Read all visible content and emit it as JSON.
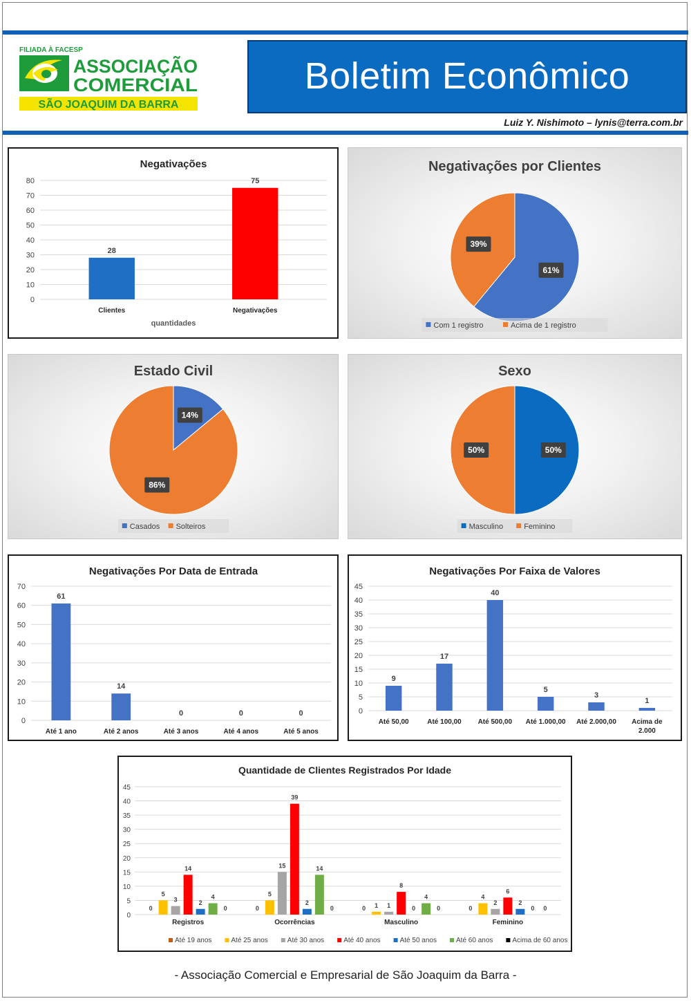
{
  "header": {
    "logo": {
      "tagline": "FILIADA À FACESP",
      "line1": "ASSOCIAÇÃO",
      "line2": "COMERCIAL",
      "city": "SÃO JOAQUIM DA BARRA"
    },
    "title": "Boletim Econômico",
    "author": "Luiz Y. Nishimoto – lynis@terra.com.br"
  },
  "footer": "- Associação Comercial e Empresarial de São Joaquim da Barra -",
  "colors": {
    "brand_blue": "#0b6bc1",
    "logo_green": "#1e9b3a",
    "logo_yellow": "#f5e400",
    "pie_blue": "#4472c4",
    "pie_orange": "#ed7d31",
    "bar_blue": "#4472c4",
    "bar_red": "#ff0000"
  },
  "chart_data": [
    {
      "id": "negativacoes",
      "type": "bar",
      "title": "Negativações",
      "categories": [
        "Clientes",
        "Negativações"
      ],
      "values": [
        28,
        75
      ],
      "bar_colors": [
        "#1f6fc5",
        "#ff0000"
      ],
      "xlabel": "quantidades",
      "ylabel": "",
      "ylim": [
        0,
        80
      ],
      "yticks": [
        0,
        10,
        20,
        30,
        40,
        50,
        60,
        70,
        80
      ],
      "grid": true
    },
    {
      "id": "negativacoes-por-clientes",
      "type": "pie",
      "title": "Negativações por Clientes",
      "labels": [
        "Com 1 registro",
        "Acima de 1 registro"
      ],
      "values": [
        61,
        39
      ],
      "value_labels": [
        "61%",
        "39%"
      ],
      "colors": [
        "#4472c4",
        "#ed7d31"
      ],
      "legend": "bottom"
    },
    {
      "id": "estado-civil",
      "type": "pie",
      "title": "Estado Civil",
      "labels": [
        "Casados",
        "Solteiros"
      ],
      "values": [
        14,
        86
      ],
      "value_labels": [
        "14%",
        "86%"
      ],
      "colors": [
        "#4472c4",
        "#ed7d31"
      ],
      "legend": "bottom"
    },
    {
      "id": "sexo",
      "type": "pie",
      "title": "Sexo",
      "labels": [
        "Masculino",
        "Feminino"
      ],
      "values": [
        50,
        50
      ],
      "value_labels": [
        "50%",
        "50%"
      ],
      "colors": [
        "#0b6bc1",
        "#ed7d31"
      ],
      "legend": "bottom"
    },
    {
      "id": "data-de-entrada",
      "type": "bar",
      "title": "Negativações Por Data de Entrada",
      "categories": [
        "Até 1 ano",
        "Até 2 anos",
        "Até 3 anos",
        "Até 4 anos",
        "Até 5 anos"
      ],
      "values": [
        61,
        14,
        0,
        0,
        0
      ],
      "bar_colors": [
        "#4472c4",
        "#4472c4",
        "#4472c4",
        "#4472c4",
        "#4472c4"
      ],
      "ylim": [
        0,
        70
      ],
      "yticks": [
        0,
        10,
        20,
        30,
        40,
        50,
        60,
        70
      ],
      "grid": true
    },
    {
      "id": "faixa-de-valores",
      "type": "bar",
      "title": "Negativações Por Faixa de Valores",
      "categories": [
        "Até 50,00",
        "Até 100,00",
        "Até 500,00",
        "Até 1.000,00",
        "Até 2.000,00",
        "Acima de 2.000"
      ],
      "values": [
        9,
        17,
        40,
        5,
        3,
        1
      ],
      "bar_colors": [
        "#4472c4",
        "#4472c4",
        "#4472c4",
        "#4472c4",
        "#4472c4",
        "#4472c4"
      ],
      "ylim": [
        0,
        45
      ],
      "yticks": [
        0,
        5,
        10,
        15,
        20,
        25,
        30,
        35,
        40,
        45
      ],
      "grid": true
    },
    {
      "id": "clientes-por-idade",
      "type": "bar",
      "title": "Quantidade de Clientes Registrados Por Idade",
      "categories": [
        "Registros",
        "Ocorrências",
        "Masculino",
        "Feminino"
      ],
      "series": [
        {
          "name": "Até 19 anos",
          "color": "#c55a11",
          "values": [
            0,
            0,
            0,
            0
          ]
        },
        {
          "name": "Até 25 anos",
          "color": "#ffc000",
          "values": [
            5,
            5,
            1,
            4
          ]
        },
        {
          "name": "Até 30 anos",
          "color": "#a5a5a5",
          "values": [
            3,
            15,
            1,
            2
          ]
        },
        {
          "name": "Até 40 anos",
          "color": "#ff0000",
          "values": [
            14,
            39,
            8,
            6
          ]
        },
        {
          "name": "Até 50 anos",
          "color": "#1f6fc5",
          "values": [
            2,
            2,
            0,
            2
          ]
        },
        {
          "name": "Até 60 anos",
          "color": "#70ad47",
          "values": [
            4,
            14,
            4,
            0
          ]
        },
        {
          "name": "Acima de 60 anos",
          "color": "#000000",
          "values": [
            0,
            0,
            0,
            0
          ]
        }
      ],
      "ylim": [
        0,
        45
      ],
      "yticks": [
        0,
        5,
        10,
        15,
        20,
        25,
        30,
        35,
        40,
        45
      ],
      "legend": "bottom",
      "grid": true
    }
  ]
}
